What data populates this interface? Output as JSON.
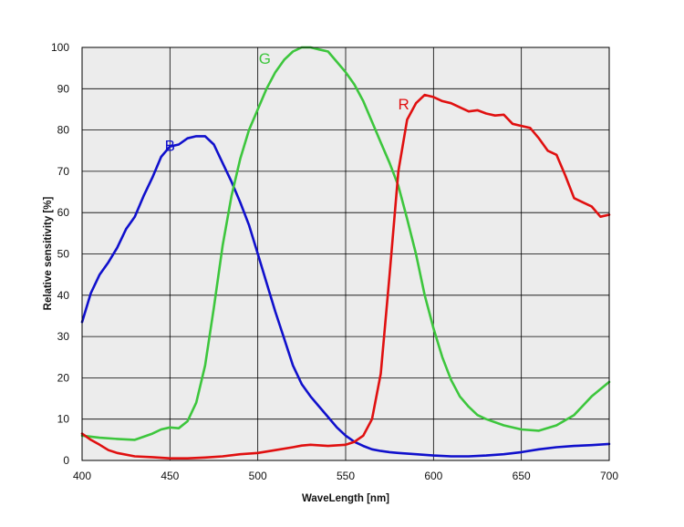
{
  "chart_data": {
    "type": "line",
    "title": "",
    "xlabel": "WaveLength [nm]",
    "ylabel": "Relative sensitivity [%]",
    "xlim": [
      400,
      700
    ],
    "ylim": [
      0,
      100
    ],
    "xticks": [
      400,
      450,
      500,
      550,
      600,
      650,
      700
    ],
    "yticks": [
      0,
      10,
      20,
      30,
      40,
      50,
      60,
      70,
      80,
      90,
      100
    ],
    "grid": true,
    "background": "#ececec",
    "series": [
      {
        "name": "B",
        "color": "#1010cc",
        "label_at": [
          450,
          75
        ],
        "x": [
          400,
          405,
          410,
          415,
          420,
          425,
          430,
          435,
          440,
          445,
          450,
          455,
          460,
          465,
          470,
          475,
          480,
          485,
          490,
          495,
          500,
          505,
          510,
          515,
          520,
          525,
          530,
          535,
          540,
          545,
          550,
          555,
          560,
          565,
          570,
          575,
          580,
          590,
          600,
          610,
          620,
          630,
          640,
          650,
          660,
          670,
          680,
          690,
          700
        ],
        "y": [
          33.5,
          40.5,
          45,
          48,
          51.5,
          56,
          59,
          64,
          68.5,
          73.5,
          76,
          76.5,
          78,
          78.5,
          78.5,
          76.5,
          72,
          67.5,
          62.5,
          57,
          50,
          43,
          36,
          29.5,
          23,
          18.5,
          15.5,
          13,
          10.5,
          8,
          6,
          4.5,
          3.5,
          2.7,
          2.3,
          2,
          1.8,
          1.5,
          1.2,
          1,
          1,
          1.2,
          1.5,
          2,
          2.7,
          3.2,
          3.5,
          3.7,
          4
        ]
      },
      {
        "name": "G",
        "color": "#3dc63d",
        "label_at": [
          504,
          96
        ],
        "x": [
          400,
          410,
          420,
          430,
          440,
          445,
          450,
          455,
          460,
          465,
          470,
          475,
          480,
          485,
          490,
          495,
          500,
          505,
          510,
          515,
          520,
          525,
          530,
          535,
          540,
          545,
          550,
          555,
          560,
          565,
          570,
          575,
          580,
          585,
          590,
          595,
          600,
          605,
          610,
          615,
          620,
          625,
          630,
          640,
          650,
          660,
          670,
          680,
          690,
          700
        ],
        "y": [
          6,
          5.5,
          5.2,
          5,
          6.5,
          7.5,
          8,
          7.8,
          9.5,
          14,
          23,
          37,
          52,
          64,
          73,
          80,
          85,
          90,
          94,
          97,
          99,
          100,
          100,
          99.5,
          99,
          96.5,
          94,
          91,
          87,
          82,
          77,
          72,
          66.5,
          58.5,
          50,
          40,
          32,
          25,
          19.5,
          15.5,
          13,
          11,
          10,
          8.5,
          7.5,
          7.2,
          8.5,
          11,
          15.5,
          19
        ]
      },
      {
        "name": "R",
        "color": "#e01010",
        "label_at": [
          583,
          85
        ],
        "x": [
          400,
          405,
          410,
          415,
          420,
          430,
          440,
          450,
          460,
          470,
          480,
          490,
          500,
          510,
          520,
          525,
          530,
          540,
          550,
          555,
          560,
          565,
          570,
          575,
          580,
          585,
          590,
          595,
          600,
          605,
          610,
          615,
          620,
          625,
          630,
          635,
          640,
          645,
          650,
          655,
          660,
          665,
          670,
          675,
          680,
          685,
          690,
          695,
          700
        ],
        "y": [
          6.5,
          5,
          3.8,
          2.5,
          1.8,
          1,
          0.8,
          0.5,
          0.5,
          0.7,
          1,
          1.5,
          1.8,
          2.5,
          3.2,
          3.6,
          3.8,
          3.5,
          3.8,
          4.5,
          6,
          10,
          21,
          45,
          70,
          82.5,
          86.5,
          88.5,
          88,
          87,
          86.5,
          85.5,
          84.5,
          84.8,
          84,
          83.5,
          83.7,
          81.5,
          81,
          80.5,
          78,
          75,
          74,
          69,
          63.5,
          62.5,
          61.5,
          59,
          59.5
        ]
      }
    ]
  }
}
